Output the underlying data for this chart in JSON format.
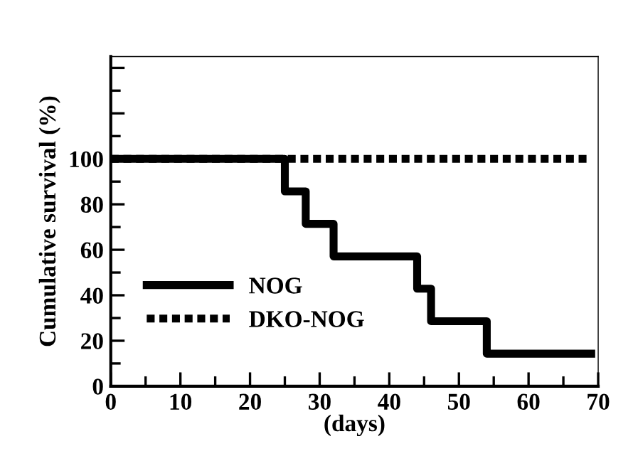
{
  "chart_data": {
    "type": "step",
    "xlabel": "(days)",
    "ylabel": "Cumulative survival (%)",
    "series": [
      {
        "name": "NOG",
        "color": "#000000",
        "line_style": "solid",
        "x": [
          0,
          25,
          28,
          32,
          44,
          46,
          54,
          69
        ],
        "values": [
          100,
          85.7,
          71.4,
          57.1,
          42.9,
          28.6,
          14.3,
          14.3
        ]
      },
      {
        "name": "DKO-NOG",
        "color": "#000000",
        "line_style": "dotted",
        "x": [
          0,
          69
        ],
        "values": [
          100,
          100
        ]
      }
    ],
    "xlim": [
      0,
      70
    ],
    "xticks": [
      0,
      10,
      20,
      30,
      40,
      50,
      60,
      70
    ],
    "ylim": [
      0,
      145
    ],
    "yticks": [
      0,
      20,
      40,
      60,
      80,
      100,
      {
        "value": 120,
        "label": null
      },
      {
        "value": 140,
        "label": null
      }
    ],
    "grid": false,
    "legend": "bottom left",
    "marker": "none"
  }
}
